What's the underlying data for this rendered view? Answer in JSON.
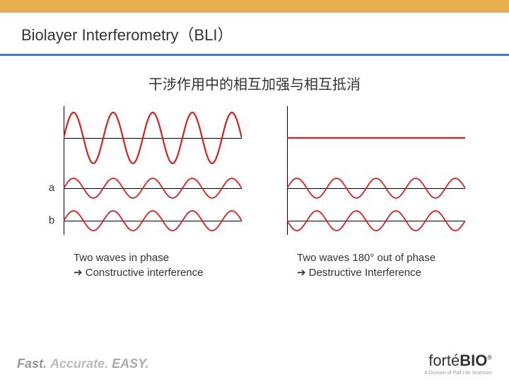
{
  "layout": {
    "top_bar_color": "#e8af50",
    "accent_line_color": "#4a7ab0",
    "background": "#ffffff"
  },
  "header": {
    "title": "Biolayer Interferometry（BLI）"
  },
  "subtitle": "干涉作用中的相互加强与相互抵消",
  "waves": {
    "color": "#d62020",
    "axis_color": "#000000",
    "big_amplitude": 36,
    "small_amplitude": 14,
    "cycles": 4.5
  },
  "labels": {
    "row_a": "a",
    "row_b": "b"
  },
  "captions": {
    "left_line1": "Two waves in phase",
    "left_line2": "Constructive interference",
    "right_line1": "Two waves 180° out of phase",
    "right_line2": "Destructive Interference",
    "arrow": "➔"
  },
  "footer": {
    "tagline_fast": "Fast.",
    "tagline_acc": "Accurate.",
    "tagline_easy": "EASY.",
    "logo_prefix": "forté",
    "logo_bold": "BIO",
    "logo_sub": "A Division of Pall Life Sciences"
  }
}
